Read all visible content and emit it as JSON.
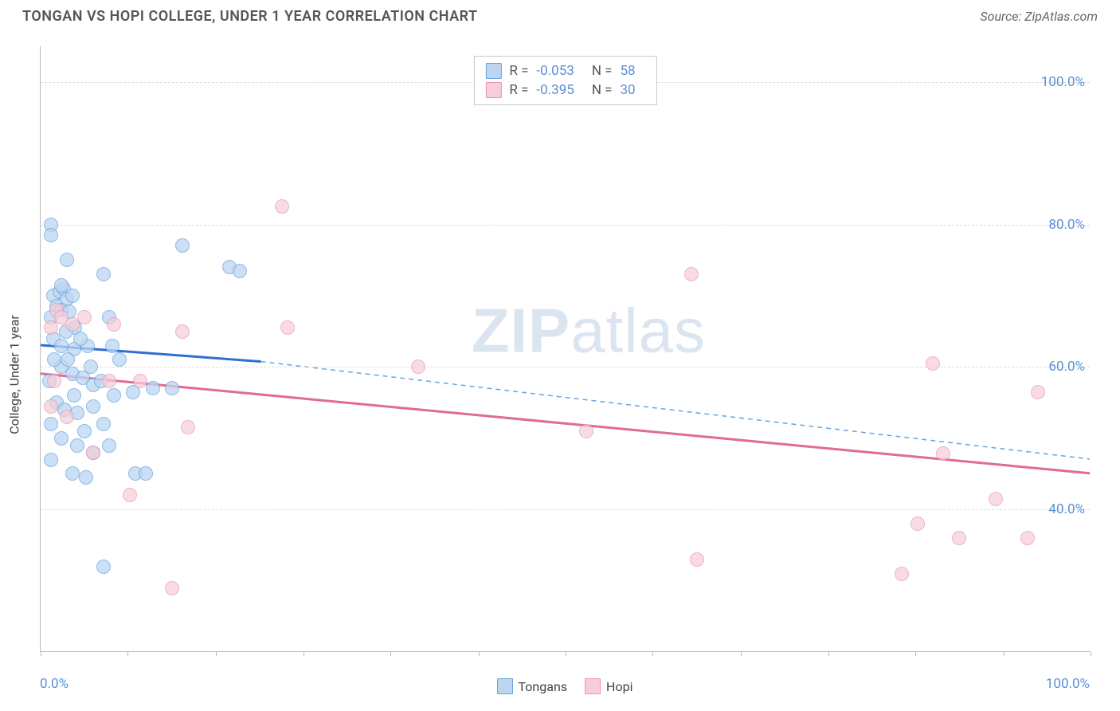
{
  "header": {
    "title": "TONGAN VS HOPI COLLEGE, UNDER 1 YEAR CORRELATION CHART",
    "source": "Source: ZipAtlas.com"
  },
  "watermark": {
    "zip": "ZIP",
    "atlas": "atlas"
  },
  "chart": {
    "type": "scatter",
    "ylabel": "College, Under 1 year",
    "xlim": [
      0,
      100
    ],
    "ylim": [
      20,
      105
    ],
    "background_color": "#ffffff",
    "grid_color": "#dddddd",
    "axis_color": "#bbbbbb",
    "tick_label_color": "#5a8fd6",
    "tick_fontsize": 17,
    "ylabel_fontsize": 16,
    "yticks": [
      40,
      60,
      80,
      100
    ],
    "ytick_labels": [
      "40.0%",
      "60.0%",
      "80.0%",
      "100.0%"
    ],
    "xticks_minor": [
      0,
      8.3,
      16.7,
      25,
      33.3,
      41.7,
      50,
      58.3,
      66.7,
      75,
      83.3,
      91.7,
      100
    ],
    "xtick_labels": [
      {
        "pos": 0,
        "label": "0.0%"
      },
      {
        "pos": 100,
        "label": "100.0%"
      }
    ],
    "point_radius": 9,
    "point_stroke_width": 1.2,
    "series": {
      "tongans": {
        "label": "Tongans",
        "fill": "#bcd6f2",
        "stroke": "#6ba3de",
        "fill_opacity": 0.75,
        "R": "-0.053",
        "N": "58",
        "trend": {
          "x1": 0,
          "y1": 63,
          "x_solid_end": 21,
          "y_solid_end": 60.7,
          "x2": 100,
          "y2": 47,
          "solid_color": "#2f6fd1",
          "solid_width": 3,
          "dash_color": "#6ba3de",
          "dash_width": 1.5,
          "dash_pattern": "6,5"
        },
        "points": [
          {
            "x": 1,
            "y": 80
          },
          {
            "x": 1,
            "y": 78.5
          },
          {
            "x": 2.5,
            "y": 75
          },
          {
            "x": 6,
            "y": 73
          },
          {
            "x": 13.5,
            "y": 77
          },
          {
            "x": 18,
            "y": 74
          },
          {
            "x": 19,
            "y": 73.5
          },
          {
            "x": 1.2,
            "y": 70
          },
          {
            "x": 1.8,
            "y": 70.5
          },
          {
            "x": 2.2,
            "y": 71
          },
          {
            "x": 2.5,
            "y": 69.5
          },
          {
            "x": 3,
            "y": 70
          },
          {
            "x": 1.5,
            "y": 68.5
          },
          {
            "x": 2,
            "y": 68
          },
          {
            "x": 2.7,
            "y": 67.8
          },
          {
            "x": 1,
            "y": 67
          },
          {
            "x": 3.3,
            "y": 65.5
          },
          {
            "x": 6.5,
            "y": 67
          },
          {
            "x": 1.2,
            "y": 64
          },
          {
            "x": 2,
            "y": 63
          },
          {
            "x": 3.2,
            "y": 62.5
          },
          {
            "x": 4.5,
            "y": 63
          },
          {
            "x": 6.8,
            "y": 63
          },
          {
            "x": 7.5,
            "y": 61
          },
          {
            "x": 2,
            "y": 60
          },
          {
            "x": 3,
            "y": 59
          },
          {
            "x": 4,
            "y": 58.5
          },
          {
            "x": 5,
            "y": 57.5
          },
          {
            "x": 5.8,
            "y": 58
          },
          {
            "x": 7,
            "y": 56
          },
          {
            "x": 8.8,
            "y": 56.5
          },
          {
            "x": 10.7,
            "y": 57
          },
          {
            "x": 12.5,
            "y": 57
          },
          {
            "x": 1.5,
            "y": 55
          },
          {
            "x": 2.3,
            "y": 54
          },
          {
            "x": 3.5,
            "y": 53.5
          },
          {
            "x": 5,
            "y": 54.5
          },
          {
            "x": 6,
            "y": 52
          },
          {
            "x": 1,
            "y": 52
          },
          {
            "x": 2,
            "y": 50
          },
          {
            "x": 3.5,
            "y": 49
          },
          {
            "x": 5,
            "y": 48
          },
          {
            "x": 6.5,
            "y": 49
          },
          {
            "x": 1,
            "y": 47
          },
          {
            "x": 9,
            "y": 45
          },
          {
            "x": 10,
            "y": 45
          },
          {
            "x": 3,
            "y": 45
          },
          {
            "x": 4.3,
            "y": 44.5
          },
          {
            "x": 6,
            "y": 32
          },
          {
            "x": 2,
            "y": 71.5
          },
          {
            "x": 2.4,
            "y": 65
          },
          {
            "x": 3.8,
            "y": 64
          },
          {
            "x": 0.8,
            "y": 58
          },
          {
            "x": 3.2,
            "y": 56
          },
          {
            "x": 4.2,
            "y": 51
          },
          {
            "x": 1.3,
            "y": 61
          },
          {
            "x": 2.6,
            "y": 61
          },
          {
            "x": 4.8,
            "y": 60
          }
        ]
      },
      "hopi": {
        "label": "Hopi",
        "fill": "#f6cdd8",
        "stroke": "#e697af",
        "fill_opacity": 0.7,
        "R": "-0.395",
        "N": "30",
        "trend": {
          "x1": 0,
          "y1": 59,
          "x_solid_end": 100,
          "y_solid_end": 45,
          "x2": 100,
          "y2": 45,
          "solid_color": "#e26b93",
          "solid_width": 3,
          "dash_color": "#e697af",
          "dash_width": 0,
          "dash_pattern": ""
        },
        "points": [
          {
            "x": 23,
            "y": 82.5
          },
          {
            "x": 62,
            "y": 73
          },
          {
            "x": 1.5,
            "y": 68
          },
          {
            "x": 2,
            "y": 67
          },
          {
            "x": 4.2,
            "y": 67
          },
          {
            "x": 1,
            "y": 65.5
          },
          {
            "x": 3,
            "y": 66
          },
          {
            "x": 7,
            "y": 66
          },
          {
            "x": 13.5,
            "y": 65
          },
          {
            "x": 23.5,
            "y": 65.5
          },
          {
            "x": 36,
            "y": 60
          },
          {
            "x": 85,
            "y": 60.5
          },
          {
            "x": 1.3,
            "y": 58
          },
          {
            "x": 6.5,
            "y": 58
          },
          {
            "x": 9.5,
            "y": 58
          },
          {
            "x": 95,
            "y": 56.5
          },
          {
            "x": 1,
            "y": 54.5
          },
          {
            "x": 2.5,
            "y": 53
          },
          {
            "x": 14,
            "y": 51.5
          },
          {
            "x": 52,
            "y": 51
          },
          {
            "x": 5,
            "y": 48
          },
          {
            "x": 86,
            "y": 47.8
          },
          {
            "x": 8.5,
            "y": 42
          },
          {
            "x": 91,
            "y": 41.5
          },
          {
            "x": 83.5,
            "y": 38
          },
          {
            "x": 87.5,
            "y": 36
          },
          {
            "x": 94,
            "y": 36
          },
          {
            "x": 62.5,
            "y": 33
          },
          {
            "x": 82,
            "y": 31
          },
          {
            "x": 12.5,
            "y": 29
          }
        ]
      }
    },
    "legend_top": {
      "border_color": "#c9c9c9",
      "bg": "#ffffff",
      "label_color": "#555555",
      "value_color": "#5a8fd6"
    }
  }
}
